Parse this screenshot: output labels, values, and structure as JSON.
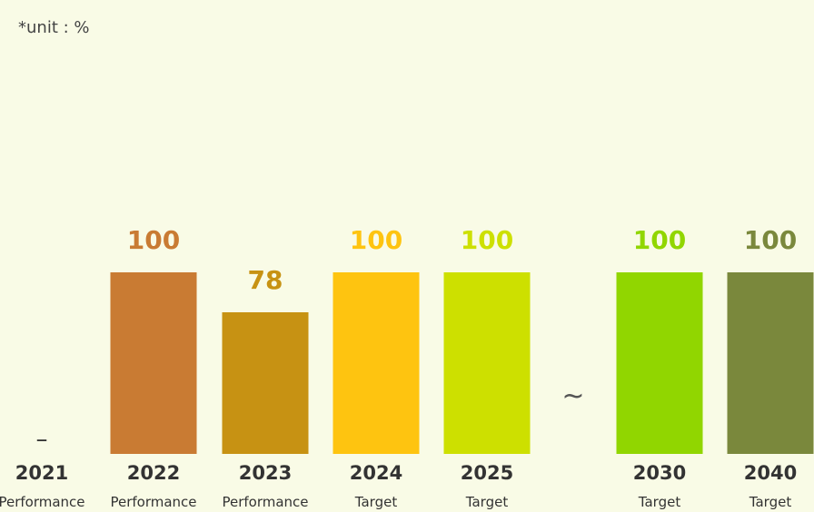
{
  "unit_label": "*unit : %",
  "separator": "~",
  "chart_data": {
    "type": "bar",
    "title": "",
    "xlabel": "",
    "ylabel": "",
    "ylim": [
      0,
      100
    ],
    "grid": false,
    "categories": [
      "2021",
      "2022",
      "2023",
      "2024",
      "2025",
      "2030",
      "2040"
    ],
    "subcategories": [
      "Performance",
      "Performance",
      "Performance",
      "Target",
      "Target",
      "Target",
      "Target"
    ],
    "values": [
      null,
      100,
      78,
      100,
      100,
      100,
      100
    ],
    "value_labels": [
      "–",
      "100",
      "78",
      "100",
      "100",
      "100",
      "100"
    ],
    "colors": [
      "#cccccc",
      "#c97b33",
      "#c79213",
      "#fec410",
      "#cde000",
      "#91d600",
      "#7a883c"
    ]
  }
}
